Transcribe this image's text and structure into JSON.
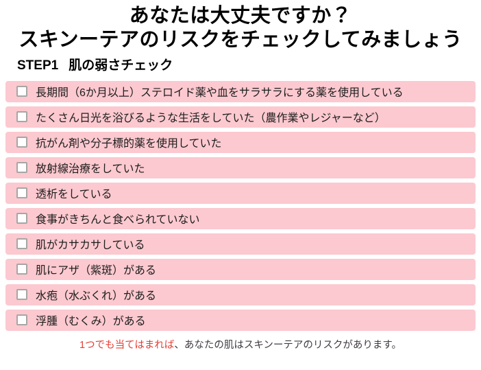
{
  "page": {
    "title_line1": "あなたは大丈夫ですか？",
    "title_line2": "スキンーテアのリスクをチェックしてみましょう",
    "step_label": "STEP1",
    "step_title": "肌の弱さチェック",
    "footer": {
      "highlight": "1つでも当てはまれば",
      "rest": "、あなたの肌はスキンーテアのリスクがあります。"
    }
  },
  "checklist": {
    "items": [
      {
        "label": "長期間（6か月以上）ステロイド薬や血をサラサラにする薬を使用している",
        "checked": false
      },
      {
        "label": "たくさん日光を浴びるような生活をしていた（農作業やレジャーなど）",
        "checked": false
      },
      {
        "label": "抗がん剤や分子標的薬を使用していた",
        "checked": false
      },
      {
        "label": "放射線治療をしていた",
        "checked": false
      },
      {
        "label": "透析をしている",
        "checked": false
      },
      {
        "label": "食事がきちんと食べられていない",
        "checked": false
      },
      {
        "label": "肌がカサカサしている",
        "checked": false
      },
      {
        "label": "肌にアザ（紫斑）がある",
        "checked": false
      },
      {
        "label": "水疱（水ぶくれ）がある",
        "checked": false
      },
      {
        "label": "浮腫（むくみ）がある",
        "checked": false
      }
    ]
  },
  "colors": {
    "row_pink": "#fbc9cf",
    "highlight_red": "#e63c32",
    "footer_dark": "#3f3b42",
    "checkbox_border": "#a6a6a6"
  }
}
